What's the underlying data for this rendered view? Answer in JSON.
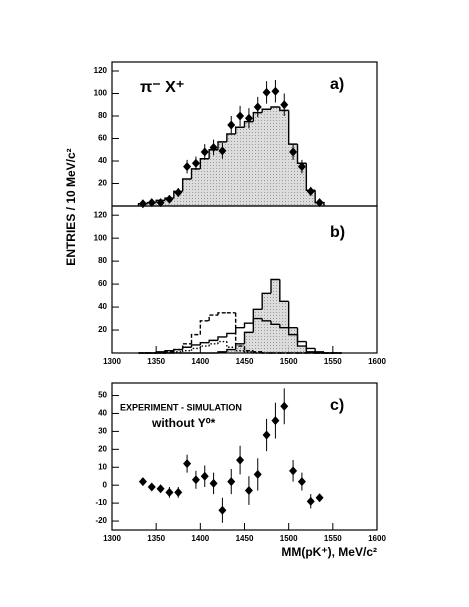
{
  "chart_data": [
    {
      "type": "histogram",
      "label": "a)",
      "annotation": "π⁻ X⁺",
      "ylabel": "ENTRIES / 10 MeV/c²",
      "xlim": [
        1300,
        1600
      ],
      "ylim": [
        0,
        128
      ],
      "yticks": [
        20,
        40,
        60,
        80,
        100,
        120
      ],
      "bins": [
        1330,
        1340,
        1350,
        1360,
        1370,
        1380,
        1390,
        1400,
        1410,
        1420,
        1430,
        1440,
        1450,
        1460,
        1470,
        1480,
        1490,
        1500,
        1510,
        1520,
        1530,
        1540
      ],
      "histograms": [
        {
          "counts": [
            2,
            3,
            5,
            7,
            13,
            24,
            33,
            42,
            50,
            57,
            64,
            70,
            75,
            83,
            86,
            88,
            85,
            55,
            38,
            14,
            3
          ],
          "style": "filled"
        }
      ],
      "fill": "#cfcfcf",
      "color": "#000000",
      "points": {
        "x": [
          1335,
          1345,
          1355,
          1365,
          1375,
          1385,
          1395,
          1405,
          1415,
          1425,
          1435,
          1445,
          1455,
          1465,
          1475,
          1485,
          1495,
          1505,
          1515,
          1525,
          1535
        ],
        "values": [
          2,
          3,
          3,
          6,
          12,
          35,
          38,
          48,
          52,
          49,
          72,
          80,
          78,
          88,
          101,
          102,
          90,
          48,
          35,
          13,
          3
        ],
        "errors": [
          1.5,
          2,
          2,
          3,
          4,
          6,
          6,
          7,
          7,
          7,
          8,
          9,
          9,
          9,
          10,
          10,
          10,
          7,
          6,
          4,
          2
        ]
      }
    },
    {
      "type": "histogram",
      "label": "b)",
      "xlim": [
        1300,
        1600
      ],
      "ylim": [
        0,
        128
      ],
      "xticks": [
        1300,
        1350,
        1400,
        1450,
        1500,
        1550,
        1600
      ],
      "yticks": [
        20,
        40,
        60,
        80,
        100,
        120
      ],
      "bins": [
        1330,
        1340,
        1350,
        1360,
        1370,
        1380,
        1390,
        1400,
        1410,
        1420,
        1430,
        1440,
        1450,
        1460,
        1470,
        1480,
        1490,
        1500,
        1510,
        1520,
        1530,
        1540,
        1550,
        1560
      ],
      "fill": "#cfcfcf",
      "color": "#000000",
      "histograms": [
        {
          "counts": [
            0,
            0,
            0,
            0,
            0,
            0,
            0,
            0,
            0,
            1,
            3,
            8,
            18,
            38,
            52,
            64,
            45,
            22,
            6,
            1,
            0,
            0,
            0
          ],
          "style": "filled"
        },
        {
          "counts": [
            0,
            0,
            1,
            2,
            3,
            5,
            7,
            9,
            11,
            14,
            17,
            22,
            26,
            30,
            28,
            25,
            22,
            16,
            10,
            4,
            1,
            0,
            0
          ],
          "style": "solid"
        },
        {
          "counts": [
            0,
            0,
            0,
            1,
            3,
            8,
            16,
            28,
            33,
            35,
            35,
            6,
            2,
            1,
            0,
            0,
            0,
            0,
            0,
            0,
            0,
            0,
            0
          ],
          "style": "dashed"
        },
        {
          "counts": [
            0,
            0,
            0,
            0,
            1,
            2,
            4,
            6,
            8,
            10,
            5,
            2,
            1,
            0,
            0,
            0,
            0,
            0,
            0,
            0,
            0,
            0,
            0
          ],
          "style": "dotted"
        }
      ]
    },
    {
      "type": "scatter",
      "label": "c)",
      "annotations": [
        "EXPERIMENT - SIMULATION",
        "without Y⁰*"
      ],
      "xlabel": "MM(pK⁺), MeV/c²",
      "xlim": [
        1300,
        1600
      ],
      "ylim": [
        -25,
        57
      ],
      "xticks": [
        1300,
        1350,
        1400,
        1450,
        1500,
        1550,
        1600
      ],
      "yticks": [
        -20,
        -10,
        0,
        10,
        20,
        30,
        40,
        50
      ],
      "color": "#000000",
      "x": [
        1335,
        1345,
        1355,
        1365,
        1375,
        1385,
        1395,
        1405,
        1415,
        1425,
        1435,
        1445,
        1455,
        1465,
        1475,
        1485,
        1495,
        1505,
        1515,
        1525,
        1535
      ],
      "values": [
        2,
        -1,
        -2,
        -4,
        -4,
        12,
        3,
        5,
        1,
        -14,
        2,
        14,
        -3,
        6,
        28,
        36,
        44,
        8,
        2,
        -9,
        -7
      ],
      "errors": [
        2,
        2,
        2,
        3,
        3,
        5,
        5,
        6,
        6,
        7,
        7,
        8,
        8,
        9,
        9,
        10,
        10,
        6,
        5,
        4,
        2
      ]
    }
  ]
}
